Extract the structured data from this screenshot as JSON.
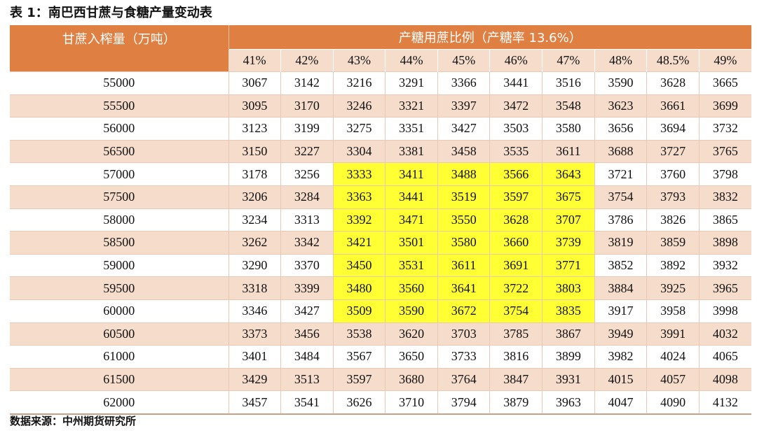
{
  "title": "表 1：南巴西甘蔗与食糖产量变动表",
  "source": "数据来源：中州期货研究所",
  "colors": {
    "header_bg": "#e07f42",
    "subheader_bg": "#f6dccb",
    "band_bg": "#f6dccb",
    "highlight_bg": "#ffff33"
  },
  "table": {
    "row_header_label": "甘蔗入榨量（万吨）",
    "group_header_label": "产糖用蔗比例（产糖率 13.6%）",
    "ratio_columns": [
      "41%",
      "42%",
      "43%",
      "44%",
      "45%",
      "46%",
      "47%",
      "48%",
      "48.5%",
      "49%"
    ],
    "rows": [
      {
        "cane": "55000",
        "values": [
          "3067",
          "3142",
          "3216",
          "3291",
          "3366",
          "3441",
          "3516",
          "3590",
          "3628",
          "3665"
        ]
      },
      {
        "cane": "55500",
        "values": [
          "3095",
          "3170",
          "3246",
          "3321",
          "3397",
          "3472",
          "3548",
          "3623",
          "3661",
          "3699"
        ]
      },
      {
        "cane": "56000",
        "values": [
          "3123",
          "3199",
          "3275",
          "3351",
          "3427",
          "3503",
          "3580",
          "3656",
          "3694",
          "3732"
        ]
      },
      {
        "cane": "56500",
        "values": [
          "3150",
          "3227",
          "3304",
          "3381",
          "3458",
          "3535",
          "3611",
          "3688",
          "3727",
          "3765"
        ]
      },
      {
        "cane": "57000",
        "values": [
          "3178",
          "3256",
          "3333",
          "3411",
          "3488",
          "3566",
          "3643",
          "3721",
          "3760",
          "3798"
        ]
      },
      {
        "cane": "57500",
        "values": [
          "3206",
          "3284",
          "3363",
          "3441",
          "3519",
          "3597",
          "3675",
          "3754",
          "3793",
          "3832"
        ]
      },
      {
        "cane": "58000",
        "values": [
          "3234",
          "3313",
          "3392",
          "3471",
          "3550",
          "3628",
          "3707",
          "3786",
          "3826",
          "3865"
        ]
      },
      {
        "cane": "58500",
        "values": [
          "3262",
          "3342",
          "3421",
          "3501",
          "3580",
          "3660",
          "3739",
          "3819",
          "3859",
          "3898"
        ]
      },
      {
        "cane": "59000",
        "values": [
          "3290",
          "3370",
          "3450",
          "3531",
          "3611",
          "3691",
          "3771",
          "3852",
          "3892",
          "3932"
        ]
      },
      {
        "cane": "59500",
        "values": [
          "3318",
          "3399",
          "3480",
          "3560",
          "3641",
          "3722",
          "3803",
          "3884",
          "3925",
          "3965"
        ]
      },
      {
        "cane": "60000",
        "values": [
          "3346",
          "3427",
          "3509",
          "3590",
          "3672",
          "3754",
          "3835",
          "3917",
          "3958",
          "3998"
        ]
      },
      {
        "cane": "60500",
        "values": [
          "3373",
          "3456",
          "3538",
          "3620",
          "3703",
          "3785",
          "3867",
          "3949",
          "3991",
          "4032"
        ]
      },
      {
        "cane": "61000",
        "values": [
          "3401",
          "3484",
          "3567",
          "3650",
          "3733",
          "3816",
          "3899",
          "3982",
          "4024",
          "4065"
        ]
      },
      {
        "cane": "61500",
        "values": [
          "3429",
          "3513",
          "3597",
          "3680",
          "3764",
          "3847",
          "3931",
          "4015",
          "4057",
          "4098"
        ]
      },
      {
        "cane": "62000",
        "values": [
          "3457",
          "3541",
          "3626",
          "3710",
          "3794",
          "3879",
          "3963",
          "4047",
          "4090",
          "4132"
        ]
      }
    ],
    "highlight": {
      "rows_from": "57000",
      "rows_to": "60000",
      "columns_from": "43%",
      "columns_to": "47%"
    }
  }
}
